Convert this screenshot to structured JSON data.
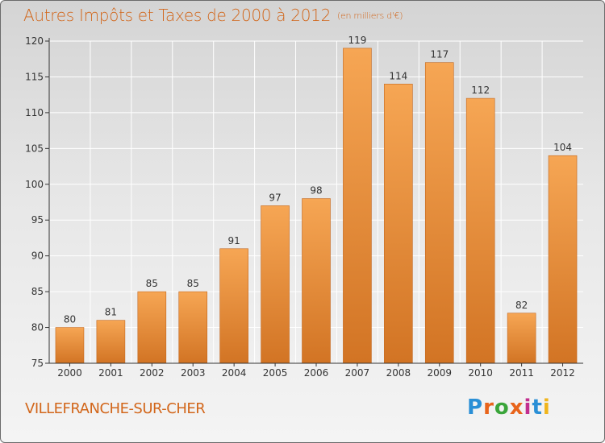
{
  "header": {
    "title": "Autres Impôts et Taxes de 2000 à 2012",
    "unit": "(en milliers d'€)"
  },
  "footer": {
    "city": "VILLEFRANCHE-SUR-CHER",
    "logo_text": "Proxiti",
    "logo_colors": [
      "#2a8fd6",
      "#e8641b",
      "#3aa53a",
      "#e8641b",
      "#c22e8f",
      "#2a8fd6",
      "#f0b51c"
    ]
  },
  "colors": {
    "accent": "#d2661a",
    "bar_top": "#f6a654",
    "bar_bottom": "#d27424",
    "axis": "#333333",
    "grid": "#ffffff"
  },
  "chart_data": {
    "type": "bar",
    "title": "Autres Impôts et Taxes de 2000 à 2012",
    "subtitle": "(en milliers d'€)",
    "xlabel": "",
    "ylabel": "",
    "categories": [
      "2000",
      "2001",
      "2002",
      "2003",
      "2004",
      "2005",
      "2006",
      "2007",
      "2008",
      "2009",
      "2010",
      "2011",
      "2012"
    ],
    "values": [
      80,
      81,
      85,
      85,
      91,
      97,
      98,
      119,
      114,
      117,
      112,
      82,
      104
    ],
    "ylim": [
      75,
      120
    ],
    "yticks": [
      75,
      80,
      85,
      90,
      95,
      100,
      105,
      110,
      115,
      120
    ],
    "grid": true,
    "data_labels": true
  }
}
